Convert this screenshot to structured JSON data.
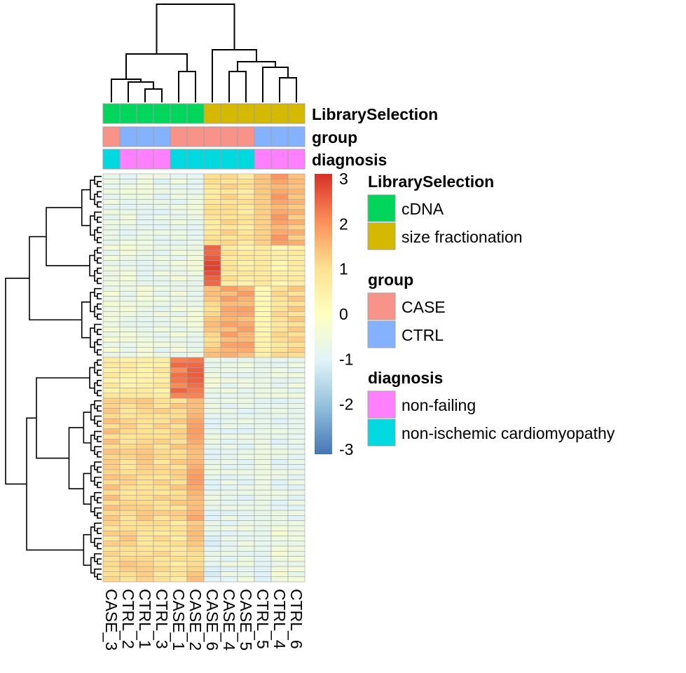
{
  "chart_data": {
    "type": "heatmap",
    "columns": [
      "CASE_3",
      "CTRL_2",
      "CTRL_1",
      "CTRL_3",
      "CASE_1",
      "CASE_2",
      "CASE_6",
      "CASE_4",
      "CASE_5",
      "CTRL_5",
      "CTRL_4",
      "CTRL_6"
    ],
    "annotations": [
      {
        "name": "LibrarySelection",
        "values": [
          "cDNA",
          "cDNA",
          "cDNA",
          "cDNA",
          "cDNA",
          "cDNA",
          "size fractionation",
          "size fractionation",
          "size fractionation",
          "size fractionation",
          "size fractionation",
          "size fractionation"
        ]
      },
      {
        "name": "group",
        "values": [
          "CASE",
          "CTRL",
          "CTRL",
          "CTRL",
          "CASE",
          "CASE",
          "CASE",
          "CASE",
          "CASE",
          "CTRL",
          "CTRL",
          "CTRL"
        ]
      },
      {
        "name": "diagnosis",
        "values": [
          "non-ischemic cardiomyopathy",
          "non-failing",
          "non-failing",
          "non-failing",
          "non-ischemic cardiomyopathy",
          "non-ischemic cardiomyopathy",
          "non-ischemic cardiomyopathy",
          "non-ischemic cardiomyopathy",
          "non-ischemic cardiomyopathy",
          "non-failing",
          "non-failing",
          "non-failing"
        ]
      }
    ],
    "legend": [
      {
        "title": "LibrarySelection",
        "items": [
          {
            "label": "cDNA",
            "color": "#00d65c"
          },
          {
            "label": "size fractionation",
            "color": "#d4b900"
          }
        ]
      },
      {
        "title": "group",
        "items": [
          {
            "label": "CASE",
            "color": "#f8938a"
          },
          {
            "label": "CTRL",
            "color": "#85b2ff"
          }
        ]
      },
      {
        "title": "diagnosis",
        "items": [
          {
            "label": "non-failing",
            "color": "#ff80ff"
          },
          {
            "label": "non-ischemic cardiomyopathy",
            "color": "#00d9e0"
          }
        ]
      }
    ],
    "color_scale": {
      "range": [
        -3,
        3
      ],
      "ticks": [
        "3",
        "2",
        "1",
        "0",
        "-1",
        "-2",
        "-3"
      ],
      "colors": [
        "#4575b4",
        "#91bfdb",
        "#e0f3f8",
        "#ffffbf",
        "#fee090",
        "#fc8d59",
        "#d73027"
      ]
    },
    "row_count": 80,
    "row_blocks": [
      {
        "count": 14,
        "values": [
          -0.7,
          -0.7,
          -0.7,
          -0.8,
          -0.7,
          -0.7,
          0.8,
          1.0,
          0.8,
          1.4,
          1.7,
          1.4
        ]
      },
      {
        "count": 8,
        "values": [
          -0.6,
          -0.6,
          -0.7,
          -0.7,
          -0.6,
          -0.6,
          2.6,
          0.8,
          0.6,
          0.9,
          0.4,
          0.6
        ]
      },
      {
        "count": 14,
        "values": [
          -0.5,
          -0.6,
          -0.6,
          -0.7,
          -0.6,
          -0.6,
          1.2,
          1.6,
          1.6,
          0.4,
          0.9,
          1.1
        ]
      },
      {
        "count": 8,
        "values": [
          0.6,
          0.5,
          0.6,
          0.6,
          2.2,
          2.3,
          -0.6,
          -0.7,
          -0.7,
          -0.7,
          -0.7,
          -0.7
        ]
      },
      {
        "count": 24,
        "values": [
          1.2,
          1.0,
          1.1,
          1.0,
          1.1,
          1.6,
          -0.8,
          -0.8,
          -0.8,
          -0.8,
          -0.8,
          -0.8
        ]
      },
      {
        "count": 12,
        "values": [
          1.0,
          1.1,
          1.0,
          0.9,
          0.8,
          1.2,
          -0.9,
          -0.8,
          -0.7,
          -0.9,
          -0.5,
          -0.6
        ]
      }
    ]
  }
}
